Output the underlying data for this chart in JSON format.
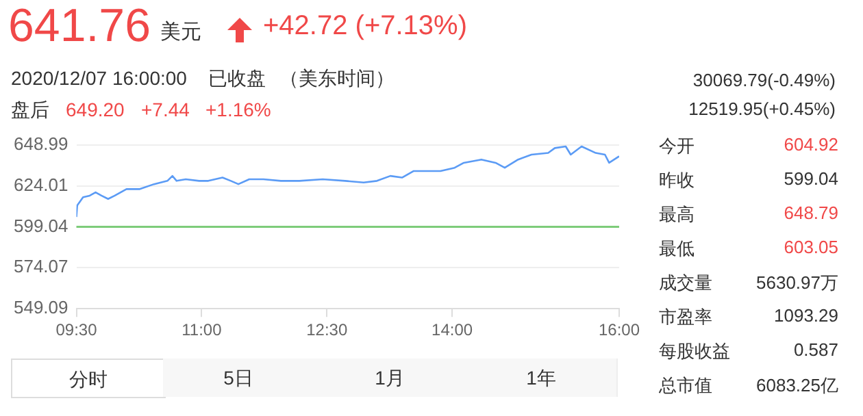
{
  "chart_data": {
    "type": "line",
    "title": "641.76",
    "annotations": [
      "美元",
      "+42.72 (+7.13%)",
      "2020/12/07 16:00:00",
      "已收盘",
      "（美东时间）",
      "盘后",
      "649.20",
      "+7.44",
      "+1.16%",
      "30069.79(-0.49%)",
      "12519.95(+0.45%)",
      "今开",
      "604.92",
      "昨收",
      "599.04",
      "最高",
      "648.79",
      "最低",
      "603.05",
      "成交量",
      "5630.97万",
      "市盈率",
      "1093.29",
      "每股收益",
      "0.587",
      "总市值",
      "6083.25亿",
      "分时",
      "5日",
      "1月",
      "1年"
    ],
    "series": [
      {
        "color": "#5b9bf5",
        "x": [
          9.5,
          9.51,
          9.58,
          9.66,
          9.73,
          9.8,
          9.88,
          9.96,
          10.1,
          10.26,
          10.43,
          10.59,
          10.65,
          10.7,
          10.81,
          10.97,
          11.08,
          11.25,
          11.35,
          11.44,
          11.57,
          11.74,
          11.95,
          12.17,
          12.45,
          12.72,
          12.94,
          13.1,
          13.26,
          13.4,
          13.54,
          13.7,
          13.86,
          14.03,
          14.14,
          14.35,
          14.52,
          14.63,
          14.79,
          14.95,
          15.15,
          15.23,
          15.36,
          15.42,
          15.55,
          15.72,
          15.83,
          15.88,
          15.94,
          16
        ],
        "values": [
          605,
          612,
          617,
          618,
          620,
          618,
          616,
          618,
          622,
          622,
          625,
          627,
          630,
          627,
          628,
          627,
          627,
          629,
          627,
          625,
          628,
          628,
          627,
          627,
          628,
          627,
          626,
          627,
          630,
          629,
          633,
          633,
          633,
          635,
          638,
          640,
          638,
          635,
          640,
          643,
          644,
          647,
          648,
          643,
          648,
          644,
          643,
          638,
          640,
          642
        ]
      }
    ],
    "xlim": [
      9.5,
      16
    ],
    "xticks": [
      {
        "value": 9.5,
        "label": "09:30"
      },
      {
        "value": 11,
        "label": "11:00"
      },
      {
        "value": 12.5,
        "label": "12:30"
      },
      {
        "value": 14,
        "label": "14:00"
      },
      {
        "value": 16,
        "label": "16:00"
      }
    ],
    "ylim": [
      549.09,
      648.99
    ],
    "yticks": [
      549.09,
      574.07,
      599.04,
      624.01,
      648.99
    ],
    "ref_lines": [
      {
        "axis": "y",
        "value": 599.04,
        "color": "#7dcc7a"
      }
    ],
    "grid": "y",
    "legend": false,
    "marker": "none",
    "line_style": "solid"
  }
}
